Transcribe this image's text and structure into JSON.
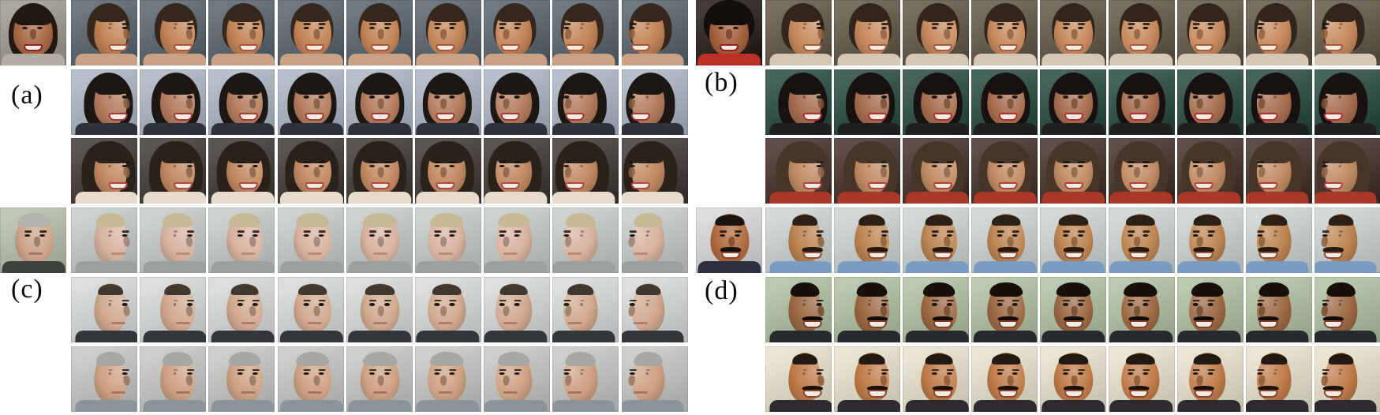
{
  "figure": {
    "background": "#ffffff",
    "yaw_degrees": [
      68,
      50,
      34,
      18,
      4,
      -14,
      -32,
      -52,
      -70
    ],
    "panels": [
      {
        "label": "(a)",
        "position": "top-left",
        "input": {
          "description": "Frontal photo of a smiling woman with a dark chin-length bob, red lipstick and a checked jacket, grey background",
          "yaw": 0,
          "style": {
            "bg": "#9b978c",
            "skin": "#a86a46",
            "hair": "#221810",
            "hairstyle": "bob",
            "lips": "#8e2030",
            "clothes": "#b3aca2",
            "expression": "smile"
          }
        },
        "rows": [
          {
            "description": "Synthesized pose sweep from right profile to left profile; tan skin, hair pulled back, dark blue-green background",
            "style": {
              "bg": "#55606a",
              "skin": "#c28457",
              "hair": "#36271d",
              "hairstyle": "pulled-back",
              "lips": "#a8543e",
              "clothes": "#c9a285",
              "expression": "smile"
            }
          },
          {
            "description": "Synthesized pose sweep; black bob hair, big smile, light blue-grey background",
            "style": {
              "bg": "#a9b3c1",
              "skin": "#b57d5e",
              "hair": "#1d1714",
              "hairstyle": "bob",
              "lips": "#a03a3a",
              "clothes": "#2f323a",
              "expression": "smile"
            }
          },
          {
            "description": "Synthesized pose sweep; dark curly hair, purple eye make-up, dark background",
            "style": {
              "bg": "#3a3531",
              "skin": "#c28a62",
              "hair": "#2b211b",
              "hairstyle": "curly-long",
              "lips": "#ae4646",
              "clothes": "#e6dbcd",
              "expression": "smile"
            }
          }
        ]
      },
      {
        "label": "(b)",
        "position": "top-right",
        "input": {
          "description": "Frontal photo of a smiling woman with voluminous black hair, pearl earrings and a red outfit, dark background",
          "yaw": 0,
          "style": {
            "bg": "#201713",
            "skin": "#a4613c",
            "hair": "#130f0c",
            "hairstyle": "bouffant",
            "lips": "#941c26",
            "clothes": "#bd3026",
            "expression": "smile"
          }
        },
        "rows": [
          {
            "description": "Synthesized pose sweep from right profile to left profile; hair pulled back, dark olive background",
            "style": {
              "bg": "#5d5342",
              "skin": "#c78a5e",
              "hair": "#322519",
              "hairstyle": "pulled-back",
              "lips": "#a55a40",
              "clothes": "#d6c6b4",
              "expression": "smile"
            }
          },
          {
            "description": "Synthesized pose sweep; black hair, red lipstick, dark teal-green background",
            "style": {
              "bg": "#24473d",
              "skin": "#a86f50",
              "hair": "#171110",
              "hairstyle": "bob",
              "lips": "#ab2f35",
              "clothes": "#20211f",
              "expression": "smile"
            }
          },
          {
            "description": "Synthesized pose sweep; brown curly hair, red top, dark red-brown background",
            "style": {
              "bg": "#402c24",
              "skin": "#c28d64",
              "hair": "#47352a",
              "hairstyle": "curly-long",
              "lips": "#b04040",
              "clothes": "#a83828",
              "expression": "smile"
            }
          }
        ]
      },
      {
        "label": "(c)",
        "position": "bottom-left",
        "input": {
          "description": "Photo of a middle-aged man with grey hair and a dark suit, neutral expression, grey-green background",
          "yaw": 12,
          "style": {
            "bg": "#b5beab",
            "skin": "#cda58b",
            "hair": "#b4b2ac",
            "hairstyle": "short",
            "lips": "#9c6e5e",
            "clothes": "#3d423d",
            "expression": "neutral"
          }
        },
        "rows": [
          {
            "description": "Synthesized pose sweep from right profile to left profile; pale man, light blond-grey hair, grey jumper, light background",
            "style": {
              "bg": "#c3cac9",
              "skin": "#d9b3a1",
              "hair": "#c7b995",
              "hairstyle": "short",
              "lips": "#b17f70",
              "clothes": "#9aa09f",
              "expression": "neutral"
            }
          },
          {
            "description": "Synthesized pose sweep; man with short dark receding hair, dark clothes, light grey background",
            "style": {
              "bg": "#d5d9d8",
              "skin": "#d1a98f",
              "hair": "#413930",
              "hairstyle": "short-receding",
              "lips": "#a8706a",
              "clothes": "#33373b",
              "expression": "neutral"
            }
          },
          {
            "description": "Synthesized pose sweep; man with grey hair, light grey-green background",
            "style": {
              "bg": "#c2c6c1",
              "skin": "#cfa284",
              "hair": "#a7a7a3",
              "hairstyle": "short",
              "lips": "#a06a58",
              "clothes": "#8b939b",
              "expression": "neutral"
            }
          }
        ]
      },
      {
        "label": "(d)",
        "position": "bottom-right",
        "input": {
          "description": "Photo of a smiling heavy-set man with black hair, thick black moustache, dark suit and blue tie, light grey background",
          "yaw": 8,
          "style": {
            "bg": "#d7d7d9",
            "skin": "#b06a3e",
            "hair": "#1c140e",
            "hairstyle": "short-receding",
            "mustache": "#16100a",
            "lips": "#8c4030",
            "clothes": "#2c3040",
            "expression": "smile"
          }
        },
        "rows": [
          {
            "description": "Synthesized pose sweep from right profile to left profile; man with moustache and stubble, blue shirt, light blue-grey background",
            "style": {
              "bg": "#ccd2d3",
              "skin": "#bd8552",
              "hair": "#2c2117",
              "hairstyle": "short-receding",
              "mustache": "#241a10",
              "lips": "#90503a",
              "clothes": "#7a9cc0",
              "expression": "smile"
            }
          },
          {
            "description": "Synthesized pose sweep; man with thick black hair, moustache and goatee, dark suit, green-grey background",
            "style": {
              "bg": "#aebfa0",
              "skin": "#9c6944",
              "hair": "#171009",
              "hairstyle": "short",
              "mustache": "#120c06",
              "lips": "#7c4030",
              "clothes": "#26292d",
              "expression": "smile"
            }
          },
          {
            "description": "Synthesized pose sweep; man with moustache, orange-tan skin, dark suit, pale warm background",
            "style": {
              "bg": "#e6e1cb",
              "skin": "#c07c4a",
              "hair": "#221a12",
              "hairstyle": "short-receding",
              "mustache": "#1a1208",
              "lips": "#8c4430",
              "clothes": "#2e2a30",
              "expression": "smile"
            }
          }
        ]
      }
    ]
  }
}
